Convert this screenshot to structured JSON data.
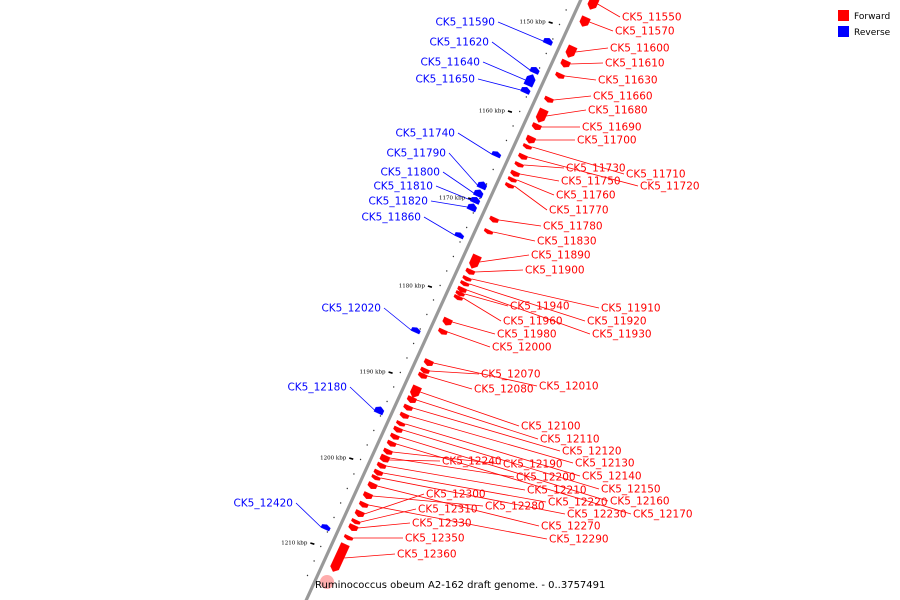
{
  "caption": "Ruminococcus obeum A2-162 draft genome. - 0..3757491",
  "legend": [
    {
      "label": "Forward",
      "color": "#ff0000"
    },
    {
      "label": "Reverse",
      "color": "#0000ff"
    }
  ],
  "tick_marks": [
    "1150 kbp",
    "1160 kbp",
    "1170 kbp",
    "1180 kbp",
    "1190 kbp",
    "1200 kbp",
    "1210 kbp"
  ],
  "forward_labels": [
    "CK5_11550",
    "CK5_11570",
    "CK5_11600",
    "CK5_11610",
    "CK5_11630",
    "CK5_11660",
    "CK5_11680",
    "CK5_11690",
    "CK5_11700",
    "CK5_11710",
    "CK5_11720",
    "CK5_11730",
    "CK5_11750",
    "CK5_11760",
    "CK5_11770",
    "CK5_11780",
    "CK5_11830",
    "CK5_11890",
    "CK5_11900",
    "CK5_11910",
    "CK5_11920",
    "CK5_11930",
    "CK5_11940",
    "CK5_11960",
    "CK5_11980",
    "CK5_12000",
    "CK5_12010",
    "CK5_12070",
    "CK5_12080",
    "CK5_12100",
    "CK5_12110",
    "CK5_12120",
    "CK5_12130",
    "CK5_12140",
    "CK5_12150",
    "CK5_12160",
    "CK5_12170",
    "CK5_12190",
    "CK5_12200",
    "CK5_12210",
    "CK5_12220",
    "CK5_12230",
    "CK5_12240",
    "CK5_12270",
    "CK5_12280",
    "CK5_12290",
    "CK5_12300",
    "CK5_12310",
    "CK5_12330",
    "CK5_12350",
    "CK5_12360"
  ],
  "reverse_labels": [
    "CK5_11590",
    "CK5_11620",
    "CK5_11640",
    "CK5_11650",
    "CK5_11740",
    "CK5_11790",
    "CK5_11800",
    "CK5_11810",
    "CK5_11820",
    "CK5_11860",
    "CK5_12020",
    "CK5_12180",
    "CK5_12420"
  ]
}
